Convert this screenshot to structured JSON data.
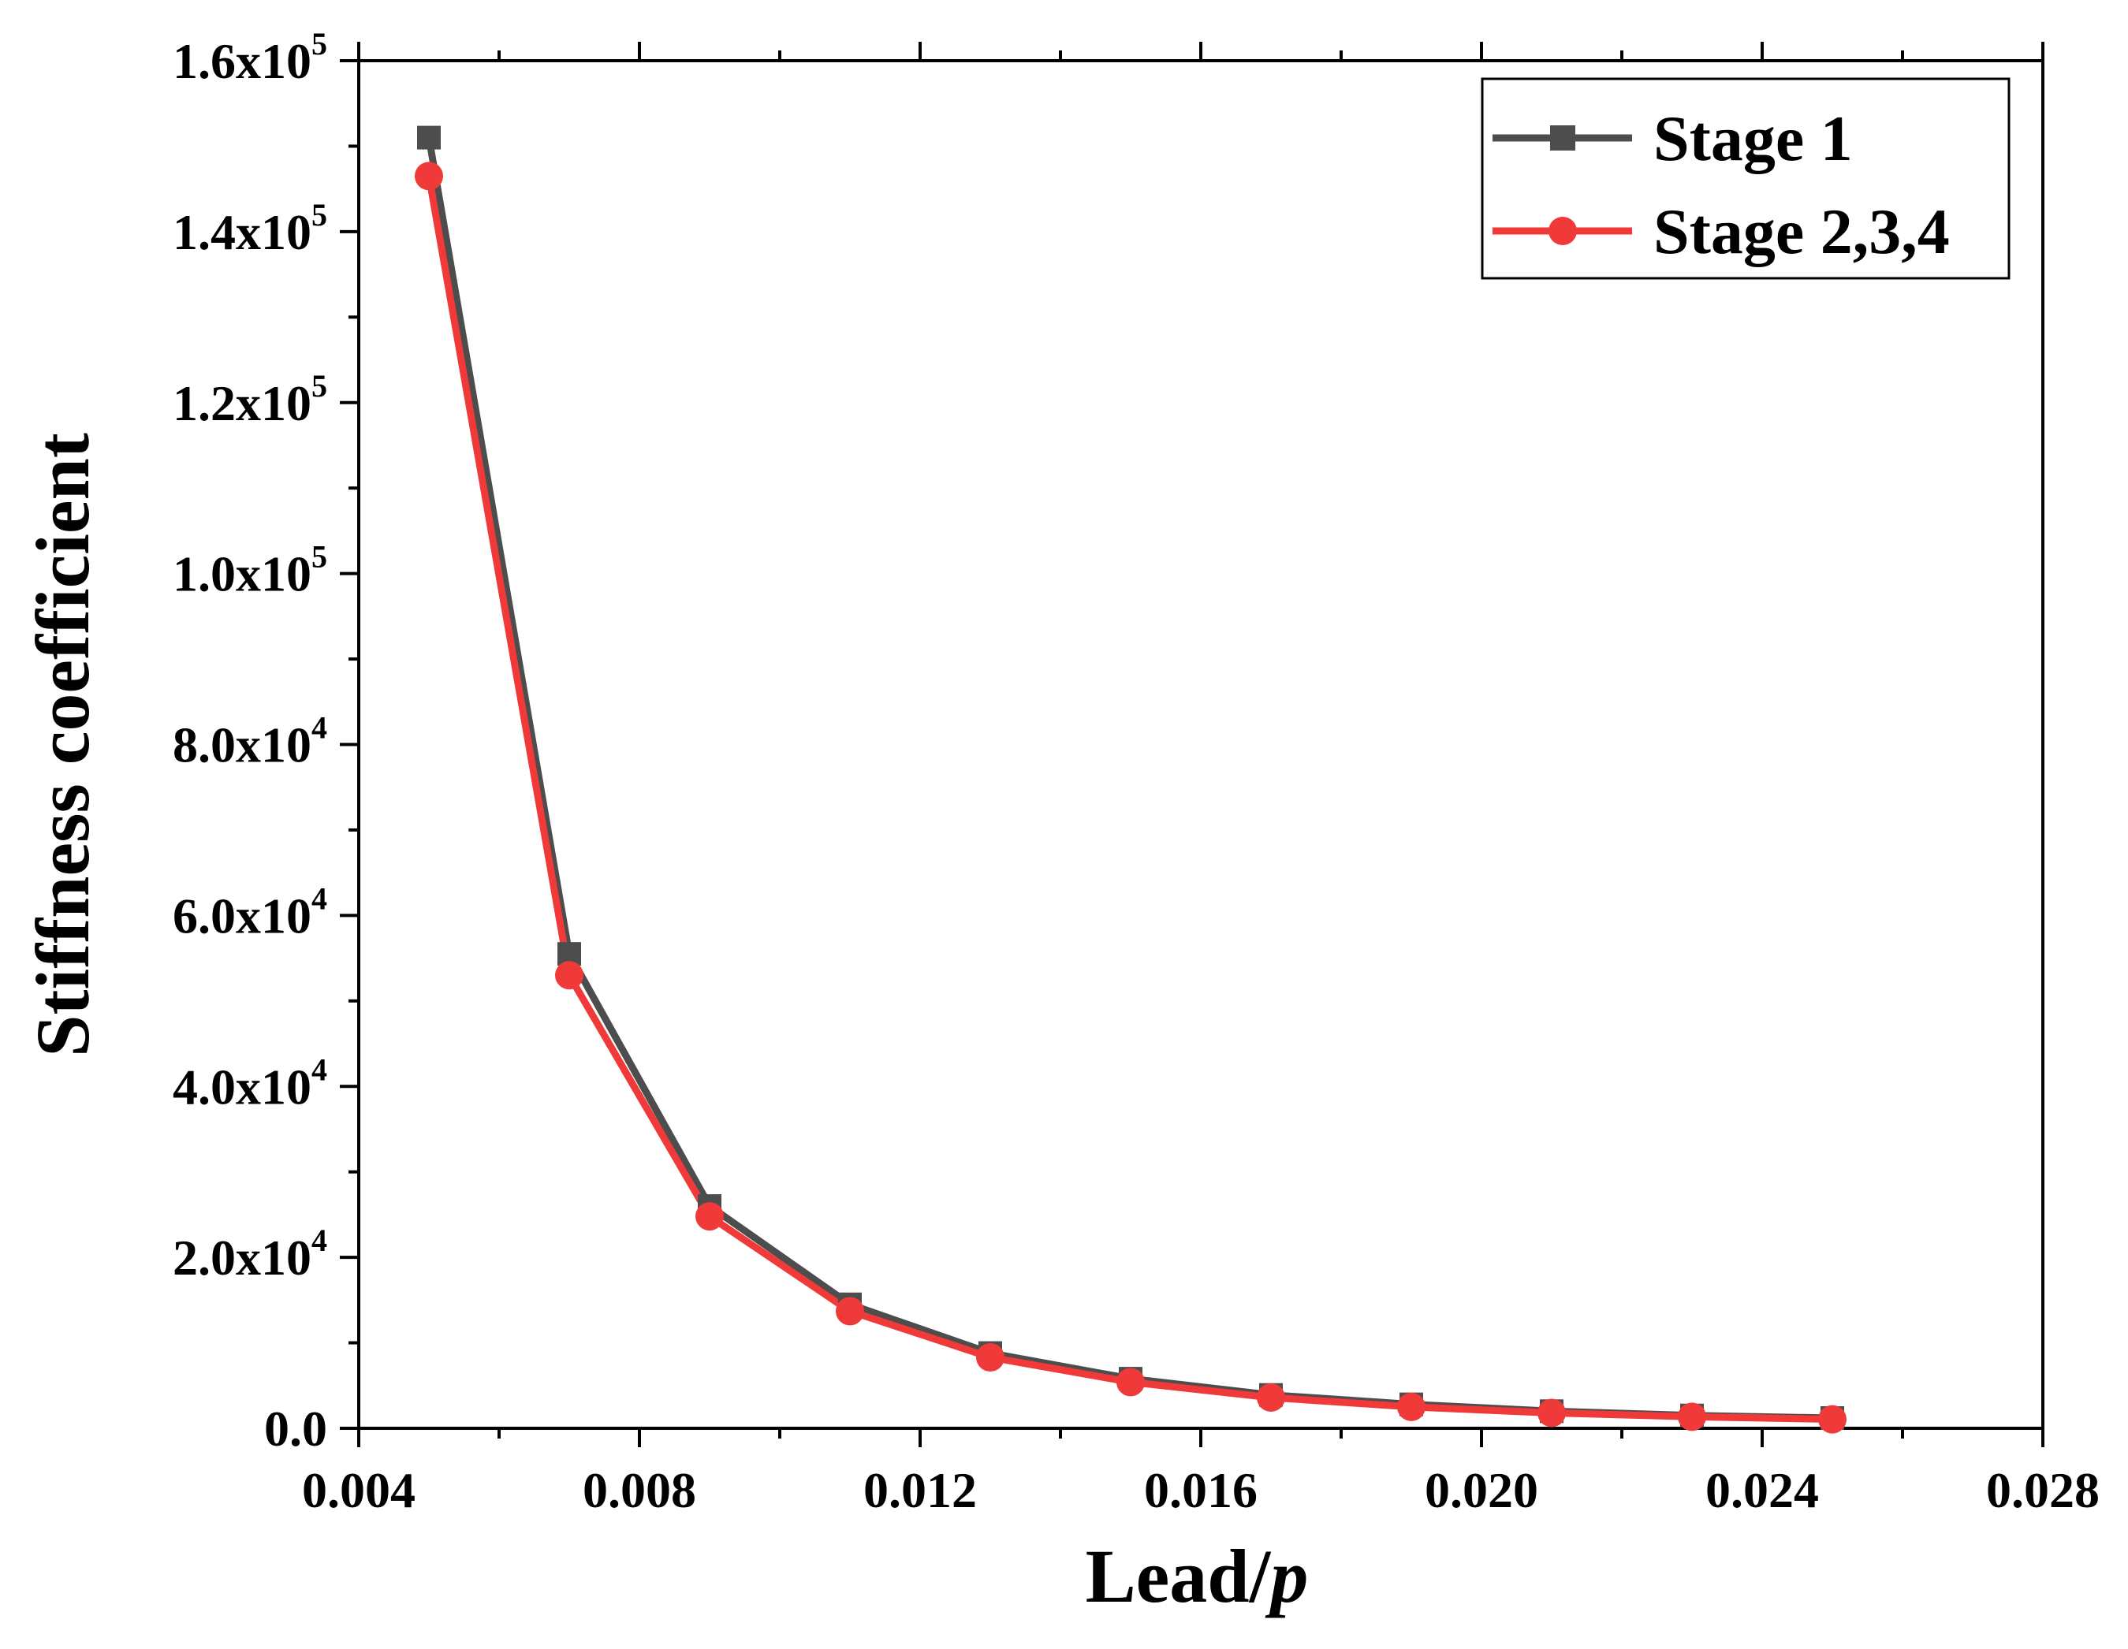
{
  "chart_data": {
    "type": "line",
    "title": "",
    "xlabel_main": "Lead/",
    "xlabel_italic": "p",
    "ylabel": "Stiffness coefficient",
    "xlim": [
      0.004,
      0.028
    ],
    "ylim": [
      0,
      160000
    ],
    "x_major_ticks": [
      0.004,
      0.008,
      0.012,
      0.016,
      0.02,
      0.024,
      0.028
    ],
    "x_tick_labels": [
      "0.004",
      "0.008",
      "0.012",
      "0.016",
      "0.020",
      "0.024",
      "0.028"
    ],
    "x_minor_ticks": [
      0.006,
      0.01,
      0.014,
      0.018,
      0.022,
      0.026
    ],
    "y_major_ticks": [
      0,
      20000,
      40000,
      60000,
      80000,
      100000,
      120000,
      140000,
      160000
    ],
    "y_tick_labels": [
      {
        "mantissa": "0.0",
        "exp": ""
      },
      {
        "mantissa": "2.0x10",
        "exp": "4"
      },
      {
        "mantissa": "4.0x10",
        "exp": "4"
      },
      {
        "mantissa": "6.0x10",
        "exp": "4"
      },
      {
        "mantissa": "8.0x10",
        "exp": "4"
      },
      {
        "mantissa": "1.0x10",
        "exp": "5"
      },
      {
        "mantissa": "1.2x10",
        "exp": "5"
      },
      {
        "mantissa": "1.4x10",
        "exp": "5"
      },
      {
        "mantissa": "1.6x10",
        "exp": "5"
      }
    ],
    "y_minor_ticks": [
      10000,
      30000,
      50000,
      70000,
      90000,
      110000,
      130000,
      150000
    ],
    "x": [
      0.005,
      0.007,
      0.009,
      0.011,
      0.013,
      0.015,
      0.017,
      0.019,
      0.021,
      0.023,
      0.025
    ],
    "series": [
      {
        "name": "Stage 1",
        "color": "#4d4d4d",
        "marker": "square",
        "values": [
          151000,
          55500,
          26000,
          14500,
          8800,
          5800,
          3900,
          2800,
          2000,
          1500,
          1200
        ]
      },
      {
        "name": "Stage 2,3,4",
        "color": "#f03a3a",
        "marker": "circle",
        "values": [
          146500,
          53000,
          24800,
          13700,
          8300,
          5400,
          3600,
          2500,
          1800,
          1350,
          1050
        ]
      }
    ],
    "legend_position": "top-right"
  }
}
